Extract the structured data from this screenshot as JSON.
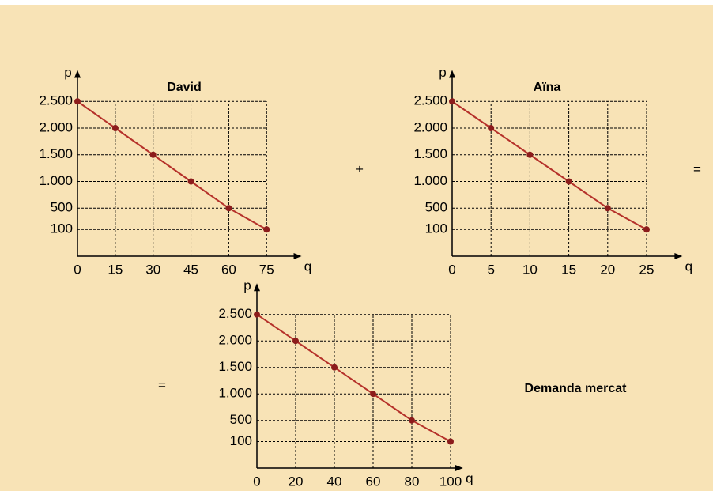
{
  "chart_data": [
    {
      "type": "line",
      "title": "David",
      "x_label": "q",
      "y_label": "p",
      "x": [
        0,
        15,
        30,
        45,
        60,
        75
      ],
      "values": [
        2500,
        2000,
        1500,
        1000,
        500,
        100
      ],
      "color": "#b5312a",
      "xlim": [
        0,
        87
      ],
      "ylim": [
        -400,
        3000
      ],
      "xticks": [
        0,
        15,
        30,
        45,
        60,
        75
      ],
      "yticks": [
        {
          "value": 100,
          "label": "100"
        },
        {
          "value": 500,
          "label": "500"
        },
        {
          "value": 1000,
          "label": "1.000"
        },
        {
          "value": 1500,
          "label": "1.500"
        },
        {
          "value": 2000,
          "label": "2.000"
        },
        {
          "value": 2500,
          "label": "2.500"
        }
      ],
      "grid": true
    },
    {
      "type": "line",
      "title": "Aïna",
      "x_label": "q",
      "y_label": "p",
      "x": [
        0,
        5,
        10,
        15,
        20,
        25
      ],
      "values": [
        2500,
        2000,
        1500,
        1000,
        500,
        100
      ],
      "color": "#b5312a",
      "xlim": [
        0,
        29
      ],
      "ylim": [
        -400,
        3000
      ],
      "xticks": [
        0,
        5,
        10,
        15,
        20,
        25
      ],
      "yticks": [
        {
          "value": 100,
          "label": "100"
        },
        {
          "value": 500,
          "label": "500"
        },
        {
          "value": 1000,
          "label": "1.000"
        },
        {
          "value": 1500,
          "label": "1.500"
        },
        {
          "value": 2000,
          "label": "2.000"
        },
        {
          "value": 2500,
          "label": "2.500"
        }
      ],
      "grid": true
    },
    {
      "type": "line",
      "title": "Demanda mercat",
      "x_label": "q",
      "y_label": "p",
      "x": [
        0,
        20,
        40,
        60,
        80,
        100
      ],
      "values": [
        2500,
        2000,
        1500,
        1000,
        500,
        100
      ],
      "color": "#b5312a",
      "xlim": [
        0,
        104
      ],
      "ylim": [
        -400,
        3000
      ],
      "xticks": [
        0,
        20,
        40,
        60,
        80,
        100
      ],
      "yticks": [
        {
          "value": 100,
          "label": "100"
        },
        {
          "value": 500,
          "label": "500"
        },
        {
          "value": 1000,
          "label": "1.000"
        },
        {
          "value": 1500,
          "label": "1.500"
        },
        {
          "value": 2000,
          "label": "2.000"
        },
        {
          "value": 2500,
          "label": "2.500"
        }
      ],
      "grid": true
    }
  ],
  "operators": [
    "+",
    "=",
    "="
  ]
}
